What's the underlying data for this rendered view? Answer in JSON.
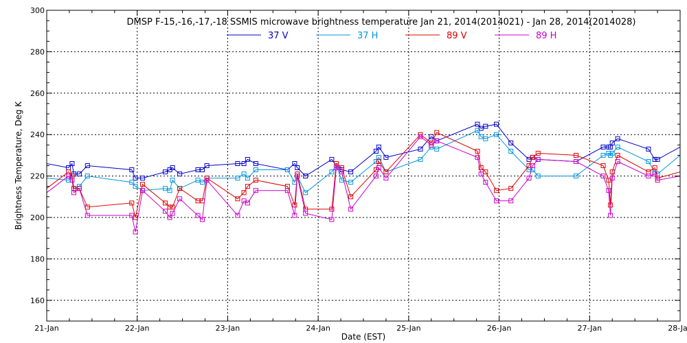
{
  "chart_data": {
    "type": "line",
    "title": "DMSP F-15,-16,-17,-18 SSMIS microwave brightness temperature Jan 21, 2014(2014021) - Jan 28, 2014(2014028)",
    "xlabel": "Date (EST)",
    "ylabel": "Brightness Temperature, Deg K",
    "x_tick_labels": [
      "21-Jan",
      "22-Jan",
      "23-Jan",
      "24-Jan",
      "25-Jan",
      "26-Jan",
      "27-Jan",
      "28-Jan"
    ],
    "y_tick_labels": [
      "160",
      "180",
      "200",
      "220",
      "240",
      "260",
      "280",
      "300"
    ],
    "xlim": [
      0,
      7
    ],
    "ylim": [
      150,
      300
    ],
    "grid": true,
    "legend_position": "top-center",
    "series": [
      {
        "name": "37 V",
        "color": "#0000c8",
        "x": [
          0.0,
          0.24,
          0.28,
          0.3,
          0.36,
          0.45,
          0.94,
          0.98,
          1.06,
          1.31,
          1.36,
          1.39,
          1.47,
          1.67,
          1.72,
          1.77,
          2.11,
          2.18,
          2.22,
          2.31,
          2.66,
          2.74,
          2.77,
          2.86,
          3.15,
          3.2,
          3.26,
          3.36,
          3.64,
          3.67,
          3.75,
          4.13,
          4.25,
          4.31,
          4.76,
          4.8,
          4.85,
          4.97,
          5.13,
          5.33,
          5.37,
          5.43,
          5.85,
          6.15,
          6.21,
          6.23,
          6.25,
          6.31,
          6.65,
          6.72,
          6.75,
          7.0
        ],
        "values": [
          226,
          224,
          226,
          221,
          221,
          225,
          223,
          219,
          219,
          222,
          223,
          224,
          221,
          223,
          223,
          225,
          226,
          226,
          228,
          226,
          223,
          226,
          224,
          220,
          228,
          225,
          223,
          222,
          232,
          234,
          229,
          233,
          239,
          237,
          245,
          243,
          244,
          245,
          236,
          228,
          229,
          228,
          227,
          234,
          234,
          234,
          236,
          238,
          233,
          228,
          228,
          234
        ]
      },
      {
        "name": "37 H",
        "color": "#0096dc",
        "x": [
          0.0,
          0.24,
          0.28,
          0.3,
          0.36,
          0.45,
          0.94,
          0.98,
          1.06,
          1.31,
          1.36,
          1.39,
          1.47,
          1.67,
          1.72,
          1.77,
          2.11,
          2.18,
          2.22,
          2.31,
          2.66,
          2.74,
          2.77,
          2.86,
          3.15,
          3.2,
          3.26,
          3.36,
          3.64,
          3.67,
          3.75,
          4.13,
          4.25,
          4.31,
          4.76,
          4.8,
          4.85,
          4.97,
          5.13,
          5.33,
          5.37,
          5.43,
          5.85,
          6.15,
          6.21,
          6.23,
          6.25,
          6.31,
          6.65,
          6.72,
          6.75,
          7.0
        ],
        "values": [
          219,
          218,
          220,
          214,
          215,
          220,
          217,
          215,
          213,
          214,
          213,
          218,
          214,
          218,
          217,
          219,
          219,
          221,
          219,
          223,
          223,
          217,
          220,
          212,
          222,
          225,
          218,
          217,
          227,
          229,
          222,
          228,
          234,
          233,
          242,
          239,
          238,
          240,
          232,
          223,
          223,
          220,
          220,
          230,
          231,
          230,
          231,
          234,
          227,
          222,
          221,
          230
        ]
      },
      {
        "name": "89 V",
        "color": "#dc0000",
        "x": [
          0.0,
          0.24,
          0.28,
          0.3,
          0.36,
          0.45,
          0.94,
          0.98,
          1.06,
          1.31,
          1.36,
          1.39,
          1.47,
          1.67,
          1.72,
          1.77,
          2.11,
          2.18,
          2.22,
          2.31,
          2.66,
          2.74,
          2.77,
          2.86,
          3.15,
          3.2,
          3.26,
          3.36,
          3.64,
          3.67,
          3.75,
          4.13,
          4.25,
          4.31,
          4.76,
          4.8,
          4.85,
          4.97,
          5.13,
          5.33,
          5.37,
          5.43,
          5.85,
          6.15,
          6.21,
          6.23,
          6.25,
          6.31,
          6.65,
          6.72,
          6.75,
          7.0
        ],
        "values": [
          214,
          222,
          220,
          214,
          214,
          205,
          207,
          200,
          216,
          207,
          205,
          205,
          214,
          208,
          208,
          219,
          209,
          212,
          215,
          218,
          215,
          206,
          221,
          204,
          204,
          226,
          224,
          210,
          223,
          227,
          222,
          240,
          236,
          241,
          232,
          224,
          222,
          213,
          214,
          225,
          229,
          231,
          230,
          225,
          218,
          206,
          222,
          230,
          222,
          224,
          219,
          222
        ]
      },
      {
        "name": "89 H",
        "color": "#c800c8",
        "x": [
          0.0,
          0.24,
          0.28,
          0.3,
          0.36,
          0.45,
          0.94,
          0.98,
          1.06,
          1.31,
          1.36,
          1.39,
          1.47,
          1.67,
          1.72,
          1.77,
          2.11,
          2.18,
          2.22,
          2.31,
          2.66,
          2.74,
          2.77,
          2.86,
          3.15,
          3.2,
          3.26,
          3.36,
          3.64,
          3.67,
          3.75,
          4.13,
          4.25,
          4.31,
          4.76,
          4.8,
          4.85,
          4.97,
          5.13,
          5.33,
          5.37,
          5.43,
          5.85,
          6.15,
          6.21,
          6.23,
          6.25,
          6.31,
          6.65,
          6.72,
          6.75,
          7.0
        ],
        "values": [
          212,
          220,
          218,
          212,
          214,
          201,
          201,
          193,
          213,
          203,
          200,
          202,
          209,
          201,
          199,
          218,
          201,
          208,
          207,
          213,
          213,
          201,
          220,
          202,
          199,
          224,
          222,
          204,
          220,
          224,
          219,
          239,
          235,
          237,
          229,
          221,
          217,
          208,
          208,
          219,
          225,
          228,
          227,
          220,
          213,
          201,
          219,
          227,
          220,
          221,
          218,
          220
        ]
      }
    ]
  }
}
